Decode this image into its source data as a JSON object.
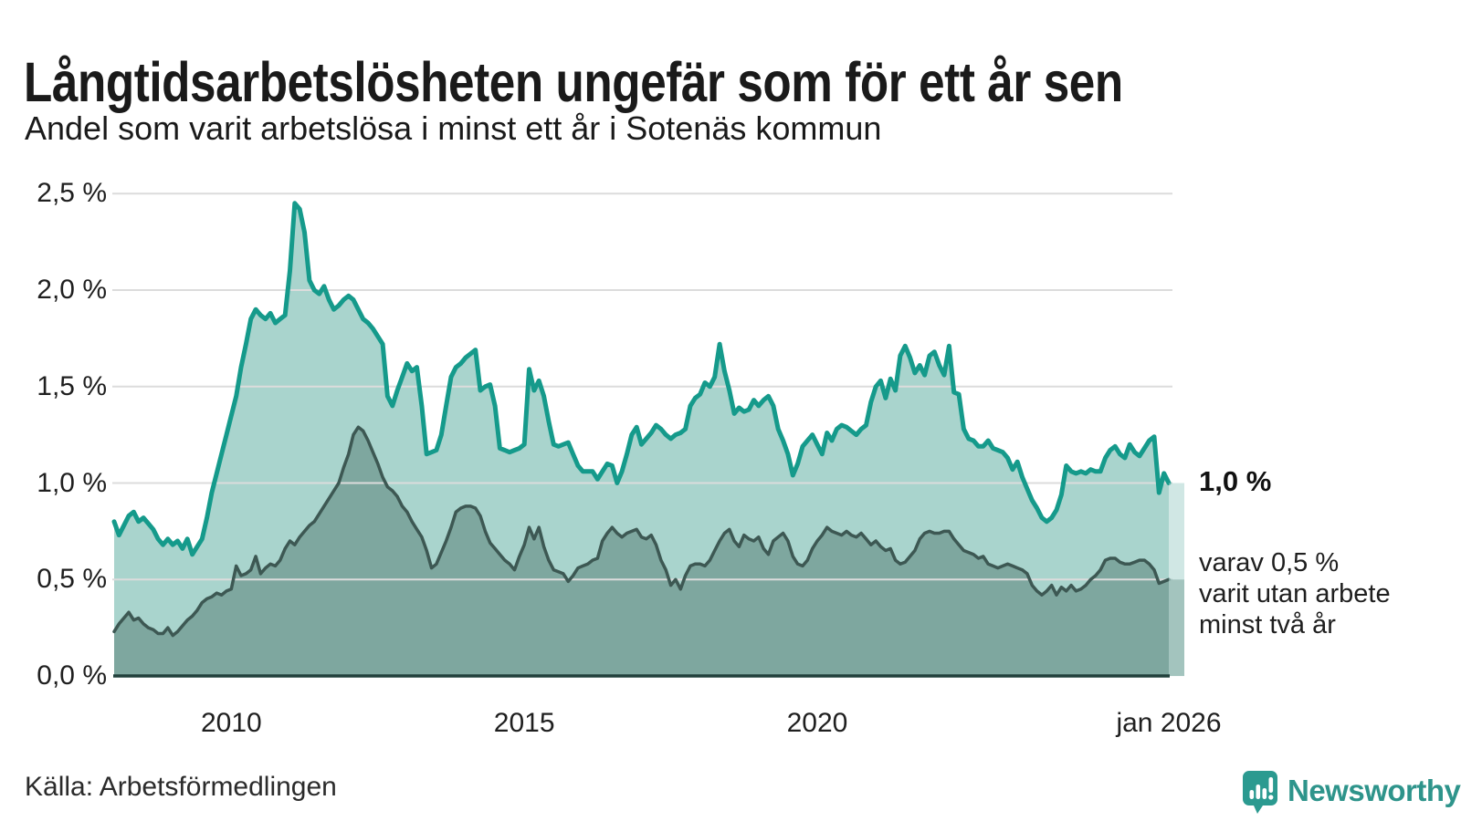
{
  "header": {
    "title": "Långtidsarbetslösheten ungefär som för ett år sen",
    "subtitle": "Andel som varit arbetslösa i minst ett år i Sotenäs kommun"
  },
  "chart_data": {
    "type": "area",
    "title": "Långtidsarbetslösheten ungefär som för ett år sen",
    "subtitle": "Andel som varit arbetslösa i minst ett år i Sotenäs kommun",
    "x_unit": "month",
    "x_start": "2008-01",
    "x_end": "2026-01",
    "ylim": [
      0,
      2.5
    ],
    "grid": true,
    "legend_position": "none",
    "y_ticks": [
      0,
      0.5,
      1.0,
      1.5,
      2.0,
      2.5
    ],
    "y_tick_labels": [
      "0,0 %",
      "0,5 %",
      "1,0 %",
      "1,5 %",
      "2,0 %",
      "2,5 %"
    ],
    "x_ticks": [
      {
        "label": "2010",
        "month_index": 24
      },
      {
        "label": "2015",
        "month_index": 84
      },
      {
        "label": "2020",
        "month_index": 144
      },
      {
        "label": "jan 2026",
        "month_index": 216
      }
    ],
    "series": [
      {
        "name": "Andel som varit arbetslösa i minst ett år",
        "color": "#159a8b",
        "fill": "#a9d4cd",
        "last_value": 1.0,
        "values": [
          0.8,
          0.73,
          0.78,
          0.83,
          0.85,
          0.8,
          0.82,
          0.79,
          0.76,
          0.71,
          0.68,
          0.71,
          0.68,
          0.7,
          0.66,
          0.71,
          0.63,
          0.67,
          0.71,
          0.82,
          0.95,
          1.05,
          1.15,
          1.25,
          1.35,
          1.45,
          1.6,
          1.72,
          1.85,
          1.9,
          1.87,
          1.85,
          1.88,
          1.83,
          1.85,
          1.87,
          2.1,
          2.45,
          2.42,
          2.3,
          2.05,
          2.0,
          1.98,
          2.02,
          1.95,
          1.9,
          1.92,
          1.95,
          1.97,
          1.95,
          1.9,
          1.85,
          1.83,
          1.8,
          1.76,
          1.72,
          1.45,
          1.4,
          1.48,
          1.55,
          1.62,
          1.58,
          1.6,
          1.4,
          1.15,
          1.16,
          1.17,
          1.25,
          1.4,
          1.55,
          1.6,
          1.62,
          1.65,
          1.67,
          1.69,
          1.48,
          1.5,
          1.51,
          1.4,
          1.18,
          1.17,
          1.16,
          1.17,
          1.18,
          1.2,
          1.59,
          1.48,
          1.53,
          1.45,
          1.32,
          1.2,
          1.19,
          1.2,
          1.21,
          1.15,
          1.09,
          1.06,
          1.06,
          1.06,
          1.02,
          1.06,
          1.1,
          1.09,
          1.0,
          1.06,
          1.15,
          1.25,
          1.29,
          1.2,
          1.23,
          1.26,
          1.3,
          1.28,
          1.25,
          1.23,
          1.25,
          1.26,
          1.28,
          1.4,
          1.44,
          1.46,
          1.52,
          1.5,
          1.55,
          1.72,
          1.58,
          1.48,
          1.36,
          1.39,
          1.37,
          1.38,
          1.43,
          1.4,
          1.43,
          1.45,
          1.4,
          1.28,
          1.22,
          1.15,
          1.04,
          1.1,
          1.19,
          1.22,
          1.25,
          1.2,
          1.15,
          1.26,
          1.22,
          1.28,
          1.3,
          1.29,
          1.27,
          1.25,
          1.28,
          1.3,
          1.42,
          1.5,
          1.53,
          1.44,
          1.54,
          1.48,
          1.66,
          1.71,
          1.65,
          1.57,
          1.61,
          1.56,
          1.66,
          1.68,
          1.61,
          1.56,
          1.71,
          1.47,
          1.46,
          1.28,
          1.23,
          1.22,
          1.19,
          1.19,
          1.22,
          1.18,
          1.17,
          1.16,
          1.13,
          1.07,
          1.11,
          1.03,
          0.97,
          0.91,
          0.87,
          0.82,
          0.8,
          0.82,
          0.86,
          0.94,
          1.09,
          1.06,
          1.05,
          1.06,
          1.05,
          1.07,
          1.06,
          1.06,
          1.13,
          1.17,
          1.19,
          1.15,
          1.13,
          1.2,
          1.16,
          1.14,
          1.18,
          1.22,
          1.24,
          0.95,
          1.05,
          1.0
        ]
      },
      {
        "name": "varav utan arbete minst två år",
        "color": "#3d5853",
        "fill": "#7ea79f",
        "last_value": 0.5,
        "values": [
          0.23,
          0.27,
          0.3,
          0.33,
          0.29,
          0.3,
          0.27,
          0.25,
          0.24,
          0.22,
          0.22,
          0.25,
          0.21,
          0.23,
          0.26,
          0.29,
          0.31,
          0.34,
          0.38,
          0.4,
          0.41,
          0.43,
          0.42,
          0.44,
          0.45,
          0.57,
          0.52,
          0.53,
          0.55,
          0.62,
          0.53,
          0.56,
          0.58,
          0.57,
          0.6,
          0.66,
          0.7,
          0.68,
          0.72,
          0.75,
          0.78,
          0.8,
          0.84,
          0.88,
          0.92,
          0.96,
          1.0,
          1.08,
          1.15,
          1.25,
          1.29,
          1.27,
          1.22,
          1.16,
          1.1,
          1.03,
          0.98,
          0.96,
          0.93,
          0.88,
          0.85,
          0.8,
          0.76,
          0.72,
          0.65,
          0.56,
          0.58,
          0.64,
          0.7,
          0.77,
          0.85,
          0.87,
          0.88,
          0.88,
          0.87,
          0.83,
          0.75,
          0.69,
          0.66,
          0.63,
          0.6,
          0.58,
          0.55,
          0.62,
          0.68,
          0.77,
          0.71,
          0.77,
          0.67,
          0.6,
          0.55,
          0.54,
          0.53,
          0.49,
          0.52,
          0.56,
          0.57,
          0.58,
          0.6,
          0.61,
          0.7,
          0.74,
          0.77,
          0.74,
          0.72,
          0.74,
          0.75,
          0.76,
          0.72,
          0.71,
          0.73,
          0.68,
          0.6,
          0.55,
          0.47,
          0.5,
          0.45,
          0.52,
          0.57,
          0.58,
          0.58,
          0.57,
          0.6,
          0.65,
          0.7,
          0.74,
          0.76,
          0.7,
          0.67,
          0.73,
          0.71,
          0.7,
          0.72,
          0.66,
          0.63,
          0.7,
          0.72,
          0.74,
          0.7,
          0.62,
          0.58,
          0.57,
          0.6,
          0.66,
          0.7,
          0.73,
          0.77,
          0.75,
          0.74,
          0.73,
          0.75,
          0.73,
          0.72,
          0.74,
          0.71,
          0.68,
          0.7,
          0.67,
          0.65,
          0.66,
          0.6,
          0.58,
          0.59,
          0.62,
          0.65,
          0.71,
          0.74,
          0.75,
          0.74,
          0.74,
          0.75,
          0.75,
          0.71,
          0.68,
          0.65,
          0.64,
          0.63,
          0.61,
          0.62,
          0.58,
          0.57,
          0.56,
          0.57,
          0.58,
          0.57,
          0.56,
          0.55,
          0.53,
          0.47,
          0.44,
          0.42,
          0.44,
          0.47,
          0.42,
          0.46,
          0.44,
          0.47,
          0.44,
          0.45,
          0.47,
          0.5,
          0.52,
          0.55,
          0.6,
          0.61,
          0.61,
          0.59,
          0.58,
          0.58,
          0.59,
          0.6,
          0.6,
          0.58,
          0.55,
          0.48,
          0.49,
          0.5
        ]
      }
    ],
    "annotations": {
      "last_value_label": "1,0 %",
      "note_lines": [
        "varav 0,5 %",
        "varit utan arbete",
        "minst två år"
      ]
    }
  },
  "footer": {
    "source": "Källa: Arbetsförmedlingen",
    "logo_text": "Newsworthy"
  },
  "colors": {
    "accent_teal": "#159a8b",
    "fill_light": "#a9d4cd",
    "fill_dark": "#7ea79f",
    "line_dark": "#3d5853",
    "axis": "#21403b",
    "grid": "#dcdcdc",
    "logo": "#2e948b",
    "text": "#1a1a1a"
  }
}
